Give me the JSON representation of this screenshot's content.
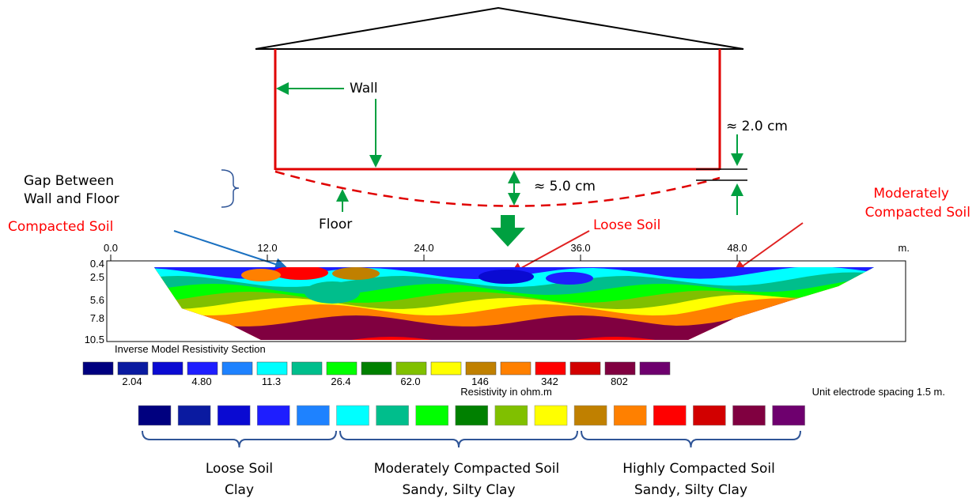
{
  "annotations": {
    "wall": "Wall",
    "floor": "Floor",
    "gap": [
      "Gap Between",
      "Wall and Floor"
    ],
    "gap_small": "≈ 2.0 cm",
    "gap_large": "≈ 5.0 cm",
    "compacted": "Compacted Soil",
    "loose": "Loose Soil",
    "moderate": [
      "Moderately",
      "Compacted Soil"
    ]
  },
  "section": {
    "x_ticks": [
      "0.0",
      "12.0",
      "24.0",
      "36.0",
      "48.0"
    ],
    "x_unit": "m.",
    "depth_ticks": [
      "0.4",
      "2.5",
      "5.6",
      "7.8",
      "10.5"
    ],
    "title": "Inverse Model Resistivity Section",
    "scale_labels": [
      "2.04",
      "4.80",
      "11.3",
      "26.4",
      "62.0",
      "146",
      "342",
      "802"
    ],
    "scale_title": "Resistivity in ohm.m",
    "spacing_note": "Unit electrode spacing 1.5 m.",
    "colors": [
      "#00007f",
      "#0a1aa0",
      "#0a0ad2",
      "#1e1eff",
      "#1e82ff",
      "#00ffff",
      "#00be8c",
      "#00ff00",
      "#008000",
      "#80c000",
      "#ffff00",
      "#c08000",
      "#ff8000",
      "#ff0000",
      "#d20000",
      "#800040",
      "#6e006e"
    ]
  },
  "legend": {
    "groups": [
      [
        "Loose Soil",
        "Clay"
      ],
      [
        "Moderately Compacted Soil",
        "Sandy, Silty Clay"
      ],
      [
        "Highly Compacted Soil",
        "Sandy, Silty Clay"
      ]
    ]
  }
}
